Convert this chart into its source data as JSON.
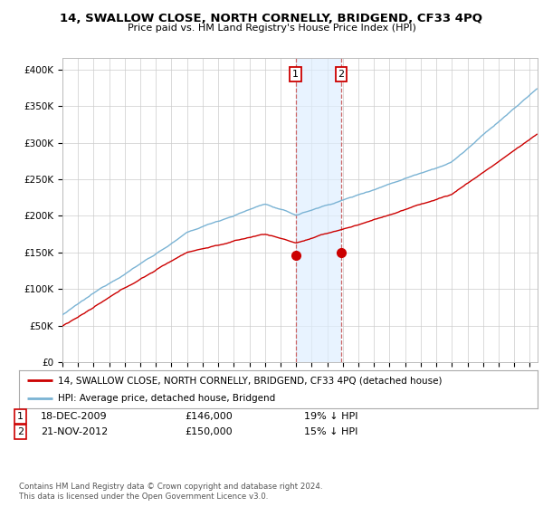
{
  "title": "14, SWALLOW CLOSE, NORTH CORNELLY, BRIDGEND, CF33 4PQ",
  "subtitle": "Price paid vs. HM Land Registry's House Price Index (HPI)",
  "ylabel_ticks": [
    "£0",
    "£50K",
    "£100K",
    "£150K",
    "£200K",
    "£250K",
    "£300K",
    "£350K",
    "£400K"
  ],
  "ytick_vals": [
    0,
    50000,
    100000,
    150000,
    200000,
    250000,
    300000,
    350000,
    400000
  ],
  "ylim": [
    0,
    415000
  ],
  "xlim_start": 1995.0,
  "xlim_end": 2025.5,
  "purchase1_x": 2009.96,
  "purchase1_y": 146000,
  "purchase2_x": 2012.9,
  "purchase2_y": 150000,
  "shaded_x1": 2009.96,
  "shaded_x2": 2012.9,
  "hpi_color": "#7ab3d4",
  "price_color": "#cc0000",
  "legend_label_red": "14, SWALLOW CLOSE, NORTH CORNELLY, BRIDGEND, CF33 4PQ (detached house)",
  "legend_label_blue": "HPI: Average price, detached house, Bridgend",
  "table_row1": [
    "1",
    "18-DEC-2009",
    "£146,000",
    "19% ↓ HPI"
  ],
  "table_row2": [
    "2",
    "21-NOV-2012",
    "£150,000",
    "15% ↓ HPI"
  ],
  "footnote": "Contains HM Land Registry data © Crown copyright and database right 2024.\nThis data is licensed under the Open Government Licence v3.0.",
  "background_color": "#ffffff",
  "grid_color": "#cccccc"
}
